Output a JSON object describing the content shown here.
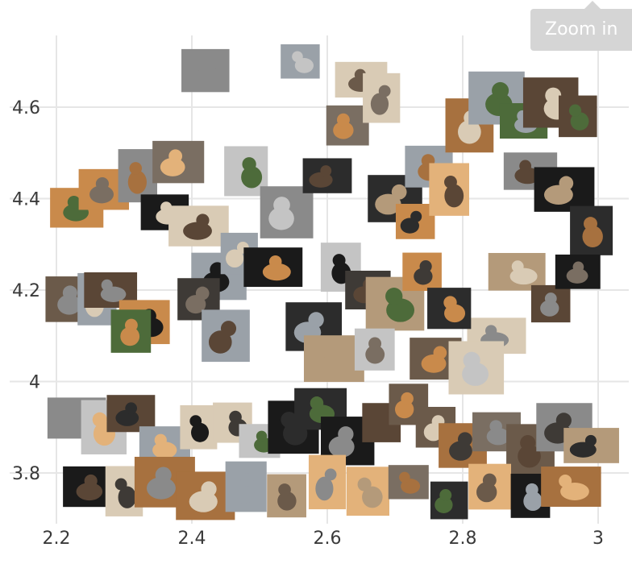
{
  "toolbar": {
    "zoom_label": "Zoom in"
  },
  "chart_data": {
    "type": "scatter",
    "marker": "thumbnail-image",
    "subject": "cat photographs",
    "title": "",
    "xlabel": "",
    "ylabel": "",
    "xlim": [
      2.19,
      3.01
    ],
    "ylim": [
      3.69,
      4.82
    ],
    "xticks": [
      2.2,
      2.4,
      2.6,
      2.8,
      3
    ],
    "xtick_labels": [
      "2.2",
      "2.4",
      "2.6",
      "2.8",
      "3"
    ],
    "yticks": [
      3.8,
      4,
      4.2,
      4.4,
      4.6
    ],
    "ytick_labels": [
      "3.8",
      "4",
      "4.2",
      "4.4",
      "4.6"
    ],
    "grid": true,
    "points": [
      {
        "x": 2.22,
        "y": 4.18
      },
      {
        "x": 2.26,
        "y": 4.18
      },
      {
        "x": 2.28,
        "y": 4.2
      },
      {
        "x": 2.33,
        "y": 4.13
      },
      {
        "x": 2.31,
        "y": 4.11
      },
      {
        "x": 2.23,
        "y": 4.38
      },
      {
        "x": 2.27,
        "y": 4.42
      },
      {
        "x": 2.32,
        "y": 4.45
      },
      {
        "x": 2.38,
        "y": 4.48
      },
      {
        "x": 2.36,
        "y": 4.37
      },
      {
        "x": 2.41,
        "y": 4.34
      },
      {
        "x": 2.42,
        "y": 4.68
      },
      {
        "x": 2.48,
        "y": 4.46
      },
      {
        "x": 2.44,
        "y": 4.23
      },
      {
        "x": 2.41,
        "y": 4.18
      },
      {
        "x": 2.47,
        "y": 4.28
      },
      {
        "x": 2.45,
        "y": 4.1
      },
      {
        "x": 2.52,
        "y": 4.25
      },
      {
        "x": 2.54,
        "y": 4.37
      },
      {
        "x": 2.56,
        "y": 4.7
      },
      {
        "x": 2.6,
        "y": 4.45
      },
      {
        "x": 2.63,
        "y": 4.56
      },
      {
        "x": 2.65,
        "y": 4.66
      },
      {
        "x": 2.68,
        "y": 4.62
      },
      {
        "x": 2.7,
        "y": 4.4
      },
      {
        "x": 2.73,
        "y": 4.35
      },
      {
        "x": 2.75,
        "y": 4.47
      },
      {
        "x": 2.78,
        "y": 4.42
      },
      {
        "x": 2.81,
        "y": 4.56
      },
      {
        "x": 2.85,
        "y": 4.62
      },
      {
        "x": 2.89,
        "y": 4.57
      },
      {
        "x": 2.93,
        "y": 4.61
      },
      {
        "x": 2.97,
        "y": 4.58
      },
      {
        "x": 2.9,
        "y": 4.46
      },
      {
        "x": 2.95,
        "y": 4.42
      },
      {
        "x": 2.99,
        "y": 4.33
      },
      {
        "x": 2.88,
        "y": 4.24
      },
      {
        "x": 2.93,
        "y": 4.17
      },
      {
        "x": 2.97,
        "y": 4.24
      },
      {
        "x": 2.85,
        "y": 4.1
      },
      {
        "x": 2.62,
        "y": 4.25
      },
      {
        "x": 2.66,
        "y": 4.2
      },
      {
        "x": 2.7,
        "y": 4.17
      },
      {
        "x": 2.74,
        "y": 4.24
      },
      {
        "x": 2.78,
        "y": 4.16
      },
      {
        "x": 2.58,
        "y": 4.12
      },
      {
        "x": 2.61,
        "y": 4.05
      },
      {
        "x": 2.67,
        "y": 4.07
      },
      {
        "x": 2.76,
        "y": 4.05
      },
      {
        "x": 2.82,
        "y": 4.03
      },
      {
        "x": 2.23,
        "y": 3.92
      },
      {
        "x": 2.27,
        "y": 3.9
      },
      {
        "x": 2.31,
        "y": 3.93
      },
      {
        "x": 2.36,
        "y": 3.86
      },
      {
        "x": 2.41,
        "y": 3.9
      },
      {
        "x": 2.46,
        "y": 3.91
      },
      {
        "x": 2.5,
        "y": 3.87
      },
      {
        "x": 2.55,
        "y": 3.9
      },
      {
        "x": 2.59,
        "y": 3.94
      },
      {
        "x": 2.63,
        "y": 3.87
      },
      {
        "x": 2.68,
        "y": 3.91
      },
      {
        "x": 2.72,
        "y": 3.95
      },
      {
        "x": 2.76,
        "y": 3.9
      },
      {
        "x": 2.8,
        "y": 3.86
      },
      {
        "x": 2.85,
        "y": 3.89
      },
      {
        "x": 2.9,
        "y": 3.85
      },
      {
        "x": 2.95,
        "y": 3.9
      },
      {
        "x": 2.99,
        "y": 3.86
      },
      {
        "x": 2.25,
        "y": 3.77
      },
      {
        "x": 2.3,
        "y": 3.76
      },
      {
        "x": 2.36,
        "y": 3.78
      },
      {
        "x": 2.42,
        "y": 3.75
      },
      {
        "x": 2.48,
        "y": 3.77
      },
      {
        "x": 2.54,
        "y": 3.75
      },
      {
        "x": 2.6,
        "y": 3.78
      },
      {
        "x": 2.66,
        "y": 3.76
      },
      {
        "x": 2.72,
        "y": 3.78
      },
      {
        "x": 2.78,
        "y": 3.74
      },
      {
        "x": 2.84,
        "y": 3.77
      },
      {
        "x": 2.9,
        "y": 3.75
      },
      {
        "x": 2.96,
        "y": 3.77
      }
    ]
  }
}
